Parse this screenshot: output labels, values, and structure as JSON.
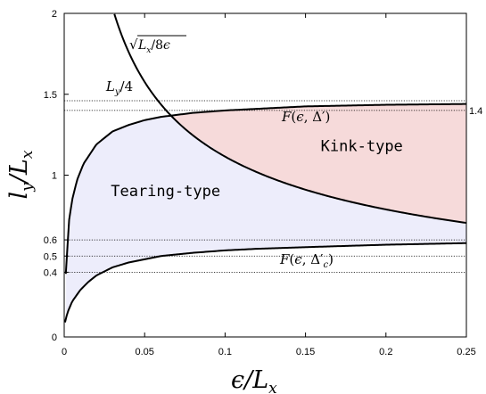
{
  "chart_data": {
    "type": "line",
    "xlabel": "ϵ/L",
    "xlabel_sub": "x",
    "ylabel": "l",
    "ylabel_sub": "y",
    "ylabel_denom": "/L",
    "ylabel_denom_sub": "x",
    "xlim": [
      0,
      0.25
    ],
    "ylim": [
      0,
      2
    ],
    "xticks": [
      "0",
      "0.05",
      "0.1",
      "0.15",
      "0.2",
      "0.25"
    ],
    "xtick_values": [
      0,
      0.05,
      0.1,
      0.15,
      0.2,
      0.25
    ],
    "yticks": [
      "0",
      "0.4",
      "0.5",
      "0.6",
      "1",
      "1.5",
      "2"
    ],
    "ytick_values": [
      0,
      0.4,
      0.5,
      0.6,
      1,
      1.5,
      2
    ],
    "right_tick": "1.4",
    "right_tick_value": 1.4,
    "reference_lines": [
      {
        "y": 1.46,
        "label": "L_y/4"
      },
      {
        "y": 1.4
      },
      {
        "y": 0.6
      },
      {
        "y": 0.5
      },
      {
        "y": 0.4
      }
    ],
    "series": [
      {
        "label": "√(L_x/8ϵ)",
        "x": [
          0.0312,
          0.035,
          0.04,
          0.05,
          0.06,
          0.07,
          0.08,
          0.1,
          0.12,
          0.15,
          0.18,
          0.2,
          0.22,
          0.25
        ],
        "y": [
          2.0,
          1.89,
          1.77,
          1.58,
          1.44,
          1.34,
          1.25,
          1.12,
          1.02,
          0.91,
          0.83,
          0.79,
          0.75,
          0.71
        ]
      },
      {
        "label": "F(ϵ,Δ′)",
        "x": [
          0.001,
          0.003,
          0.005,
          0.008,
          0.012,
          0.02,
          0.03,
          0.04,
          0.05,
          0.06,
          0.08,
          0.1,
          0.12,
          0.15,
          0.2,
          0.25
        ],
        "y": [
          0.39,
          0.72,
          0.85,
          0.97,
          1.07,
          1.19,
          1.27,
          1.31,
          1.34,
          1.36,
          1.385,
          1.4,
          1.41,
          1.425,
          1.435,
          1.44
        ]
      },
      {
        "label": "F(ϵ,Δ′_c)",
        "x": [
          0.0005,
          0.002,
          0.005,
          0.01,
          0.015,
          0.02,
          0.03,
          0.04,
          0.05,
          0.06,
          0.08,
          0.1,
          0.12,
          0.15,
          0.2,
          0.25
        ],
        "y": [
          0.09,
          0.15,
          0.22,
          0.29,
          0.34,
          0.38,
          0.43,
          0.46,
          0.48,
          0.5,
          0.52,
          0.535,
          0.545,
          0.555,
          0.57,
          0.58
        ]
      }
    ],
    "regions": [
      {
        "name": "Tearing-type",
        "color": "#ededfb"
      },
      {
        "name": "Kink-type",
        "color": "#f6dada"
      }
    ],
    "annotations": [
      {
        "text": "Tearing-type",
        "x": 0.063,
        "y": 0.87
      },
      {
        "text": "Kink-type",
        "x": 0.185,
        "y": 1.15
      },
      {
        "text": "L_y/4",
        "x": 0.026,
        "y": 1.52
      },
      {
        "text": "√(L_x/8ϵ)",
        "x": 0.0735,
        "y": 1.82
      },
      {
        "text": "F(ϵ,Δ′)",
        "x": 0.139,
        "y": 1.33
      },
      {
        "text": "F(ϵ,Δ′_c)",
        "x": 0.138,
        "y": 0.47
      }
    ]
  }
}
